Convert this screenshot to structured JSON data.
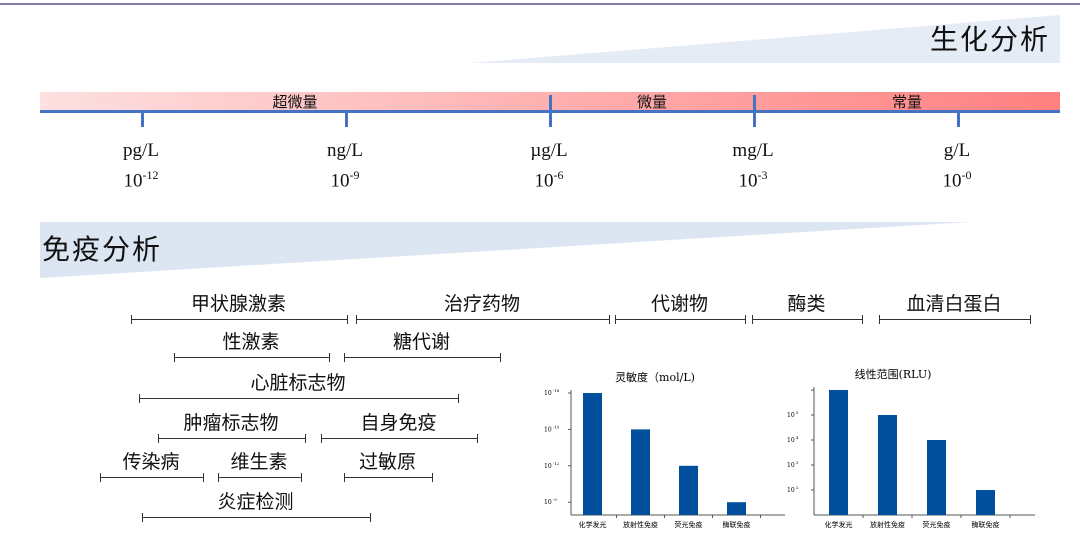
{
  "biochem": {
    "title": "生化分析"
  },
  "immuno": {
    "title": "免疫分析"
  },
  "bands": [
    "超微量",
    "微量",
    "常量"
  ],
  "units": [
    {
      "unit": "pg/L",
      "exp": "-12"
    },
    {
      "unit": "ng/L",
      "exp": "-9"
    },
    {
      "unit": "µg/L",
      "exp": "-6"
    },
    {
      "unit": "mg/L",
      "exp": "-3"
    },
    {
      "unit": "g/L",
      "exp": "-0"
    }
  ],
  "categories": [
    "甲状腺激素",
    "治疗药物",
    "代谢物",
    "酶类",
    "血清白蛋白",
    "性激素",
    "糖代谢",
    "心脏标志物",
    "肿瘤标志物",
    "自身免疫",
    "传染病",
    "维生素",
    "过敏原",
    "炎症检测"
  ],
  "colors": {
    "bar": "#00509e",
    "band_start": "#fde0e0",
    "band_end": "#ff8080",
    "axis": "#4472c4"
  },
  "chart_data": [
    {
      "type": "bar",
      "title": "灵敏度（mol/L)",
      "categories": [
        "化学发光",
        "放射性免疫",
        "荧光免疫",
        "酶联免疫"
      ],
      "values": [
        1e-18,
        1e-15,
        1e-12,
        1e-09
      ],
      "yscale": "log",
      "yaxis_inverted": true,
      "yticks": [
        "10^-18",
        "10^-15",
        "10^-12",
        "10^-9"
      ],
      "ylim": [
        1e-18,
        1e-08
      ]
    },
    {
      "type": "bar",
      "title": "线性范围(RLU)",
      "categories": [
        "化学发光",
        "放射性免疫",
        "荧光免疫",
        "酶联免疫"
      ],
      "values": [
        1000000.0,
        100000.0,
        10000.0,
        100.0
      ],
      "yscale": "log",
      "yticks": [
        "10^5",
        "10^4",
        "10^3",
        "10^2"
      ],
      "ylim": [
        10.0,
        1000000.0
      ]
    }
  ]
}
